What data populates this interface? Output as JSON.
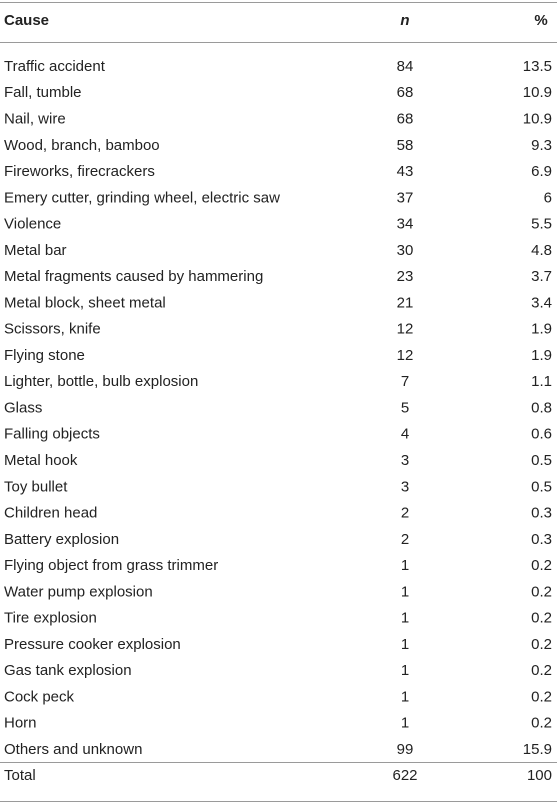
{
  "table": {
    "header": [
      "Cause",
      "n",
      "%"
    ],
    "rows": [
      [
        "Traffic accident",
        84,
        13.5
      ],
      [
        "Fall, tumble",
        68,
        10.9
      ],
      [
        "Nail, wire",
        68,
        10.9
      ],
      [
        "Wood, branch, bamboo",
        58,
        9.3
      ],
      [
        "Fireworks, firecrackers",
        43,
        6.9
      ],
      [
        "Emery cutter, grinding wheel, electric saw",
        37,
        6
      ],
      [
        "Violence",
        34,
        5.5
      ],
      [
        "Metal bar",
        30,
        4.8
      ],
      [
        "Metal fragments caused by hammering",
        23,
        3.7
      ],
      [
        "Metal block, sheet metal",
        21,
        3.4
      ],
      [
        "Scissors, knife",
        12,
        1.9
      ],
      [
        "Flying stone",
        12,
        1.9
      ],
      [
        "Lighter, bottle, bulb explosion",
        7,
        1.1
      ],
      [
        "Glass",
        5,
        0.8
      ],
      [
        "Falling objects",
        4,
        0.6
      ],
      [
        "Metal hook",
        3,
        0.5
      ],
      [
        "Toy bullet",
        3,
        0.5
      ],
      [
        "Children head",
        2,
        0.3
      ],
      [
        "Battery explosion",
        2,
        0.3
      ],
      [
        "Flying object from grass trimmer",
        1,
        0.2
      ],
      [
        "Water pump explosion",
        1,
        0.2
      ],
      [
        "Tire explosion",
        1,
        0.2
      ],
      [
        "Pressure cooker explosion",
        1,
        0.2
      ],
      [
        "Gas tank explosion",
        1,
        0.2
      ],
      [
        "Cock peck",
        1,
        0.2
      ],
      [
        "Horn",
        1,
        0.2
      ],
      [
        "Others and unknown",
        99,
        15.9
      ]
    ],
    "total": [
      "Total",
      622,
      100
    ]
  }
}
